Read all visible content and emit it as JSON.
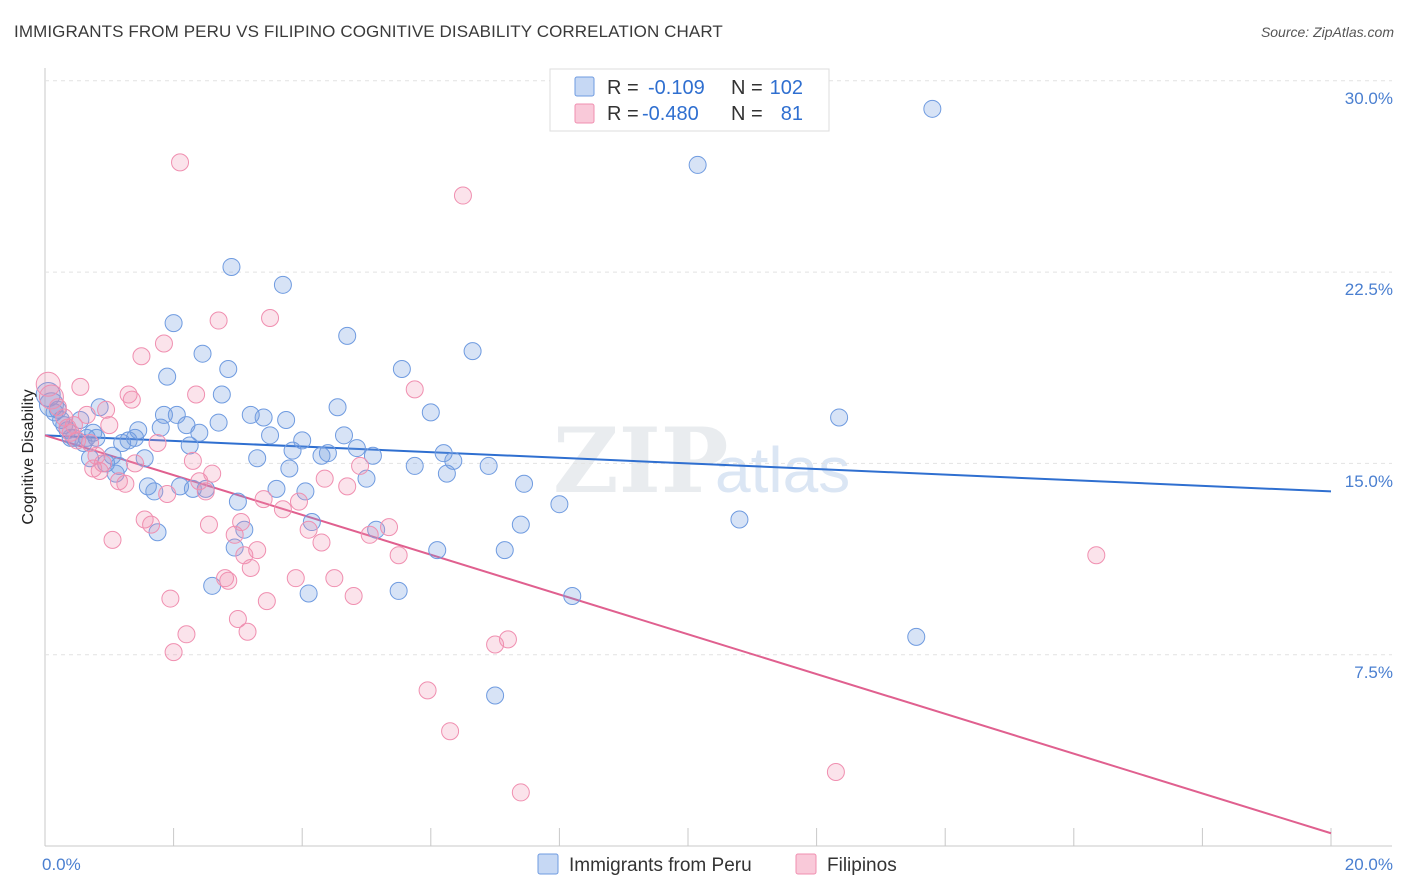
{
  "title": "IMMIGRANTS FROM PERU VS FILIPINO COGNITIVE DISABILITY CORRELATION CHART",
  "source": "Source: ZipAtlas.com",
  "watermark": {
    "zip": "ZIP",
    "atlas": "atlas"
  },
  "legend": {
    "r_label": "R =",
    "n_label": "N =",
    "series": [
      {
        "r": "-0.109",
        "n": "102"
      },
      {
        "r": "-0.480",
        "n": "81"
      }
    ]
  },
  "bottom_legend": [
    "Immigrants from Peru",
    "Filipinos"
  ],
  "chart_data": {
    "type": "scatter",
    "title": "IMMIGRANTS FROM PERU VS FILIPINO COGNITIVE DISABILITY CORRELATION CHART",
    "xlabel": "",
    "ylabel": "Cognitive Disability",
    "xlim": [
      0,
      20
    ],
    "ylim": [
      0,
      30.5
    ],
    "x_tick_labels": [
      "0.0%",
      "20.0%"
    ],
    "y_ticks": [
      7.5,
      15.0,
      22.5,
      30.0
    ],
    "y_tick_labels": [
      "7.5%",
      "15.0%",
      "22.5%",
      "30.0%"
    ],
    "colors": {
      "peru": "#6f9be0",
      "peru_line": "#2f6fd0",
      "filipino": "#f08fb0",
      "filipino_line": "#e0608f"
    },
    "series": [
      {
        "name": "Immigrants from Peru",
        "R": -0.109,
        "N": 102,
        "trend": {
          "x0": 0,
          "y0": 16.1,
          "x1": 20,
          "y1": 13.9
        },
        "points": [
          [
            0.05,
            17.7
          ],
          [
            0.1,
            17.3
          ],
          [
            0.15,
            17.0
          ],
          [
            0.2,
            17.1
          ],
          [
            0.25,
            16.7
          ],
          [
            0.3,
            16.5
          ],
          [
            0.35,
            16.3
          ],
          [
            0.4,
            16.0
          ],
          [
            0.45,
            16.0
          ],
          [
            0.55,
            16.7
          ],
          [
            0.6,
            15.8
          ],
          [
            0.65,
            16.0
          ],
          [
            0.7,
            15.2
          ],
          [
            0.75,
            16.2
          ],
          [
            0.8,
            16.0
          ],
          [
            0.85,
            17.2
          ],
          [
            0.95,
            15.0
          ],
          [
            1.05,
            15.3
          ],
          [
            1.1,
            14.6
          ],
          [
            1.15,
            14.9
          ],
          [
            1.2,
            15.8
          ],
          [
            1.3,
            15.9
          ],
          [
            1.4,
            16.0
          ],
          [
            1.45,
            16.3
          ],
          [
            1.55,
            15.2
          ],
          [
            1.6,
            14.1
          ],
          [
            1.7,
            13.9
          ],
          [
            1.75,
            12.3
          ],
          [
            1.8,
            16.4
          ],
          [
            1.85,
            16.9
          ],
          [
            1.9,
            18.4
          ],
          [
            2.0,
            20.5
          ],
          [
            2.05,
            16.9
          ],
          [
            2.1,
            14.1
          ],
          [
            2.2,
            16.5
          ],
          [
            2.25,
            15.7
          ],
          [
            2.3,
            14.0
          ],
          [
            2.4,
            16.2
          ],
          [
            2.45,
            19.3
          ],
          [
            2.5,
            14.0
          ],
          [
            2.6,
            10.2
          ],
          [
            2.7,
            16.6
          ],
          [
            2.75,
            17.7
          ],
          [
            2.85,
            18.7
          ],
          [
            2.9,
            22.7
          ],
          [
            2.95,
            11.7
          ],
          [
            3.0,
            13.5
          ],
          [
            3.1,
            12.4
          ],
          [
            3.2,
            16.9
          ],
          [
            3.3,
            15.2
          ],
          [
            3.4,
            16.8
          ],
          [
            3.5,
            16.1
          ],
          [
            3.6,
            14.0
          ],
          [
            3.7,
            22.0
          ],
          [
            3.75,
            16.7
          ],
          [
            3.8,
            14.8
          ],
          [
            3.85,
            15.5
          ],
          [
            4.0,
            15.9
          ],
          [
            4.05,
            13.9
          ],
          [
            4.1,
            9.9
          ],
          [
            4.15,
            12.7
          ],
          [
            4.3,
            15.3
          ],
          [
            4.4,
            15.4
          ],
          [
            4.55,
            17.2
          ],
          [
            4.65,
            16.1
          ],
          [
            4.7,
            20.0
          ],
          [
            4.85,
            15.6
          ],
          [
            5.0,
            14.4
          ],
          [
            5.1,
            15.3
          ],
          [
            5.15,
            12.4
          ],
          [
            5.5,
            10.0
          ],
          [
            5.55,
            18.7
          ],
          [
            5.75,
            14.9
          ],
          [
            6.0,
            17.0
          ],
          [
            6.1,
            11.6
          ],
          [
            6.2,
            15.4
          ],
          [
            6.25,
            14.6
          ],
          [
            6.35,
            15.1
          ],
          [
            6.65,
            19.4
          ],
          [
            6.9,
            14.9
          ],
          [
            7.0,
            5.9
          ],
          [
            7.15,
            11.6
          ],
          [
            7.4,
            12.6
          ],
          [
            7.45,
            14.2
          ],
          [
            8.0,
            13.4
          ],
          [
            8.2,
            9.8
          ],
          [
            10.15,
            26.7
          ],
          [
            10.8,
            12.8
          ],
          [
            12.35,
            16.8
          ],
          [
            13.55,
            8.2
          ],
          [
            13.8,
            28.9
          ]
        ]
      },
      {
        "name": "Filipinos",
        "R": -0.48,
        "N": 81,
        "trend": {
          "x0": 0,
          "y0": 16.1,
          "x1": 20,
          "y1": 0.5
        },
        "points": [
          [
            0.05,
            18.1
          ],
          [
            0.1,
            17.6
          ],
          [
            0.2,
            17.2
          ],
          [
            0.3,
            16.8
          ],
          [
            0.35,
            16.4
          ],
          [
            0.4,
            16.2
          ],
          [
            0.45,
            16.5
          ],
          [
            0.5,
            15.9
          ],
          [
            0.55,
            18.0
          ],
          [
            0.65,
            16.9
          ],
          [
            0.7,
            15.8
          ],
          [
            0.75,
            14.8
          ],
          [
            0.8,
            15.3
          ],
          [
            0.85,
            14.7
          ],
          [
            0.9,
            15.0
          ],
          [
            0.95,
            17.1
          ],
          [
            1.0,
            16.5
          ],
          [
            1.05,
            12.0
          ],
          [
            1.15,
            14.3
          ],
          [
            1.25,
            14.2
          ],
          [
            1.3,
            17.7
          ],
          [
            1.35,
            17.5
          ],
          [
            1.4,
            15.0
          ],
          [
            1.5,
            19.2
          ],
          [
            1.55,
            12.8
          ],
          [
            1.65,
            12.6
          ],
          [
            1.75,
            15.8
          ],
          [
            1.85,
            19.7
          ],
          [
            1.9,
            13.8
          ],
          [
            1.95,
            9.7
          ],
          [
            2.0,
            7.6
          ],
          [
            2.1,
            26.8
          ],
          [
            2.2,
            8.3
          ],
          [
            2.3,
            15.1
          ],
          [
            2.35,
            17.7
          ],
          [
            2.4,
            14.3
          ],
          [
            2.5,
            13.9
          ],
          [
            2.55,
            12.6
          ],
          [
            2.6,
            14.6
          ],
          [
            2.7,
            20.6
          ],
          [
            2.8,
            10.5
          ],
          [
            2.85,
            10.4
          ],
          [
            2.95,
            12.2
          ],
          [
            3.0,
            8.9
          ],
          [
            3.05,
            12.7
          ],
          [
            3.1,
            11.4
          ],
          [
            3.15,
            8.4
          ],
          [
            3.2,
            10.9
          ],
          [
            3.3,
            11.6
          ],
          [
            3.4,
            13.6
          ],
          [
            3.45,
            9.6
          ],
          [
            3.5,
            20.7
          ],
          [
            3.7,
            13.2
          ],
          [
            3.9,
            10.5
          ],
          [
            3.95,
            13.5
          ],
          [
            4.1,
            12.4
          ],
          [
            4.3,
            11.9
          ],
          [
            4.35,
            14.4
          ],
          [
            4.5,
            10.5
          ],
          [
            4.7,
            14.1
          ],
          [
            4.8,
            9.8
          ],
          [
            4.9,
            14.9
          ],
          [
            5.05,
            12.2
          ],
          [
            5.35,
            12.5
          ],
          [
            5.5,
            11.4
          ],
          [
            5.75,
            17.9
          ],
          [
            5.95,
            6.1
          ],
          [
            6.3,
            4.5
          ],
          [
            6.5,
            25.5
          ],
          [
            7.0,
            7.9
          ],
          [
            7.2,
            8.1
          ],
          [
            7.4,
            2.1
          ],
          [
            12.3,
            2.9
          ],
          [
            16.35,
            11.4
          ]
        ]
      }
    ]
  }
}
